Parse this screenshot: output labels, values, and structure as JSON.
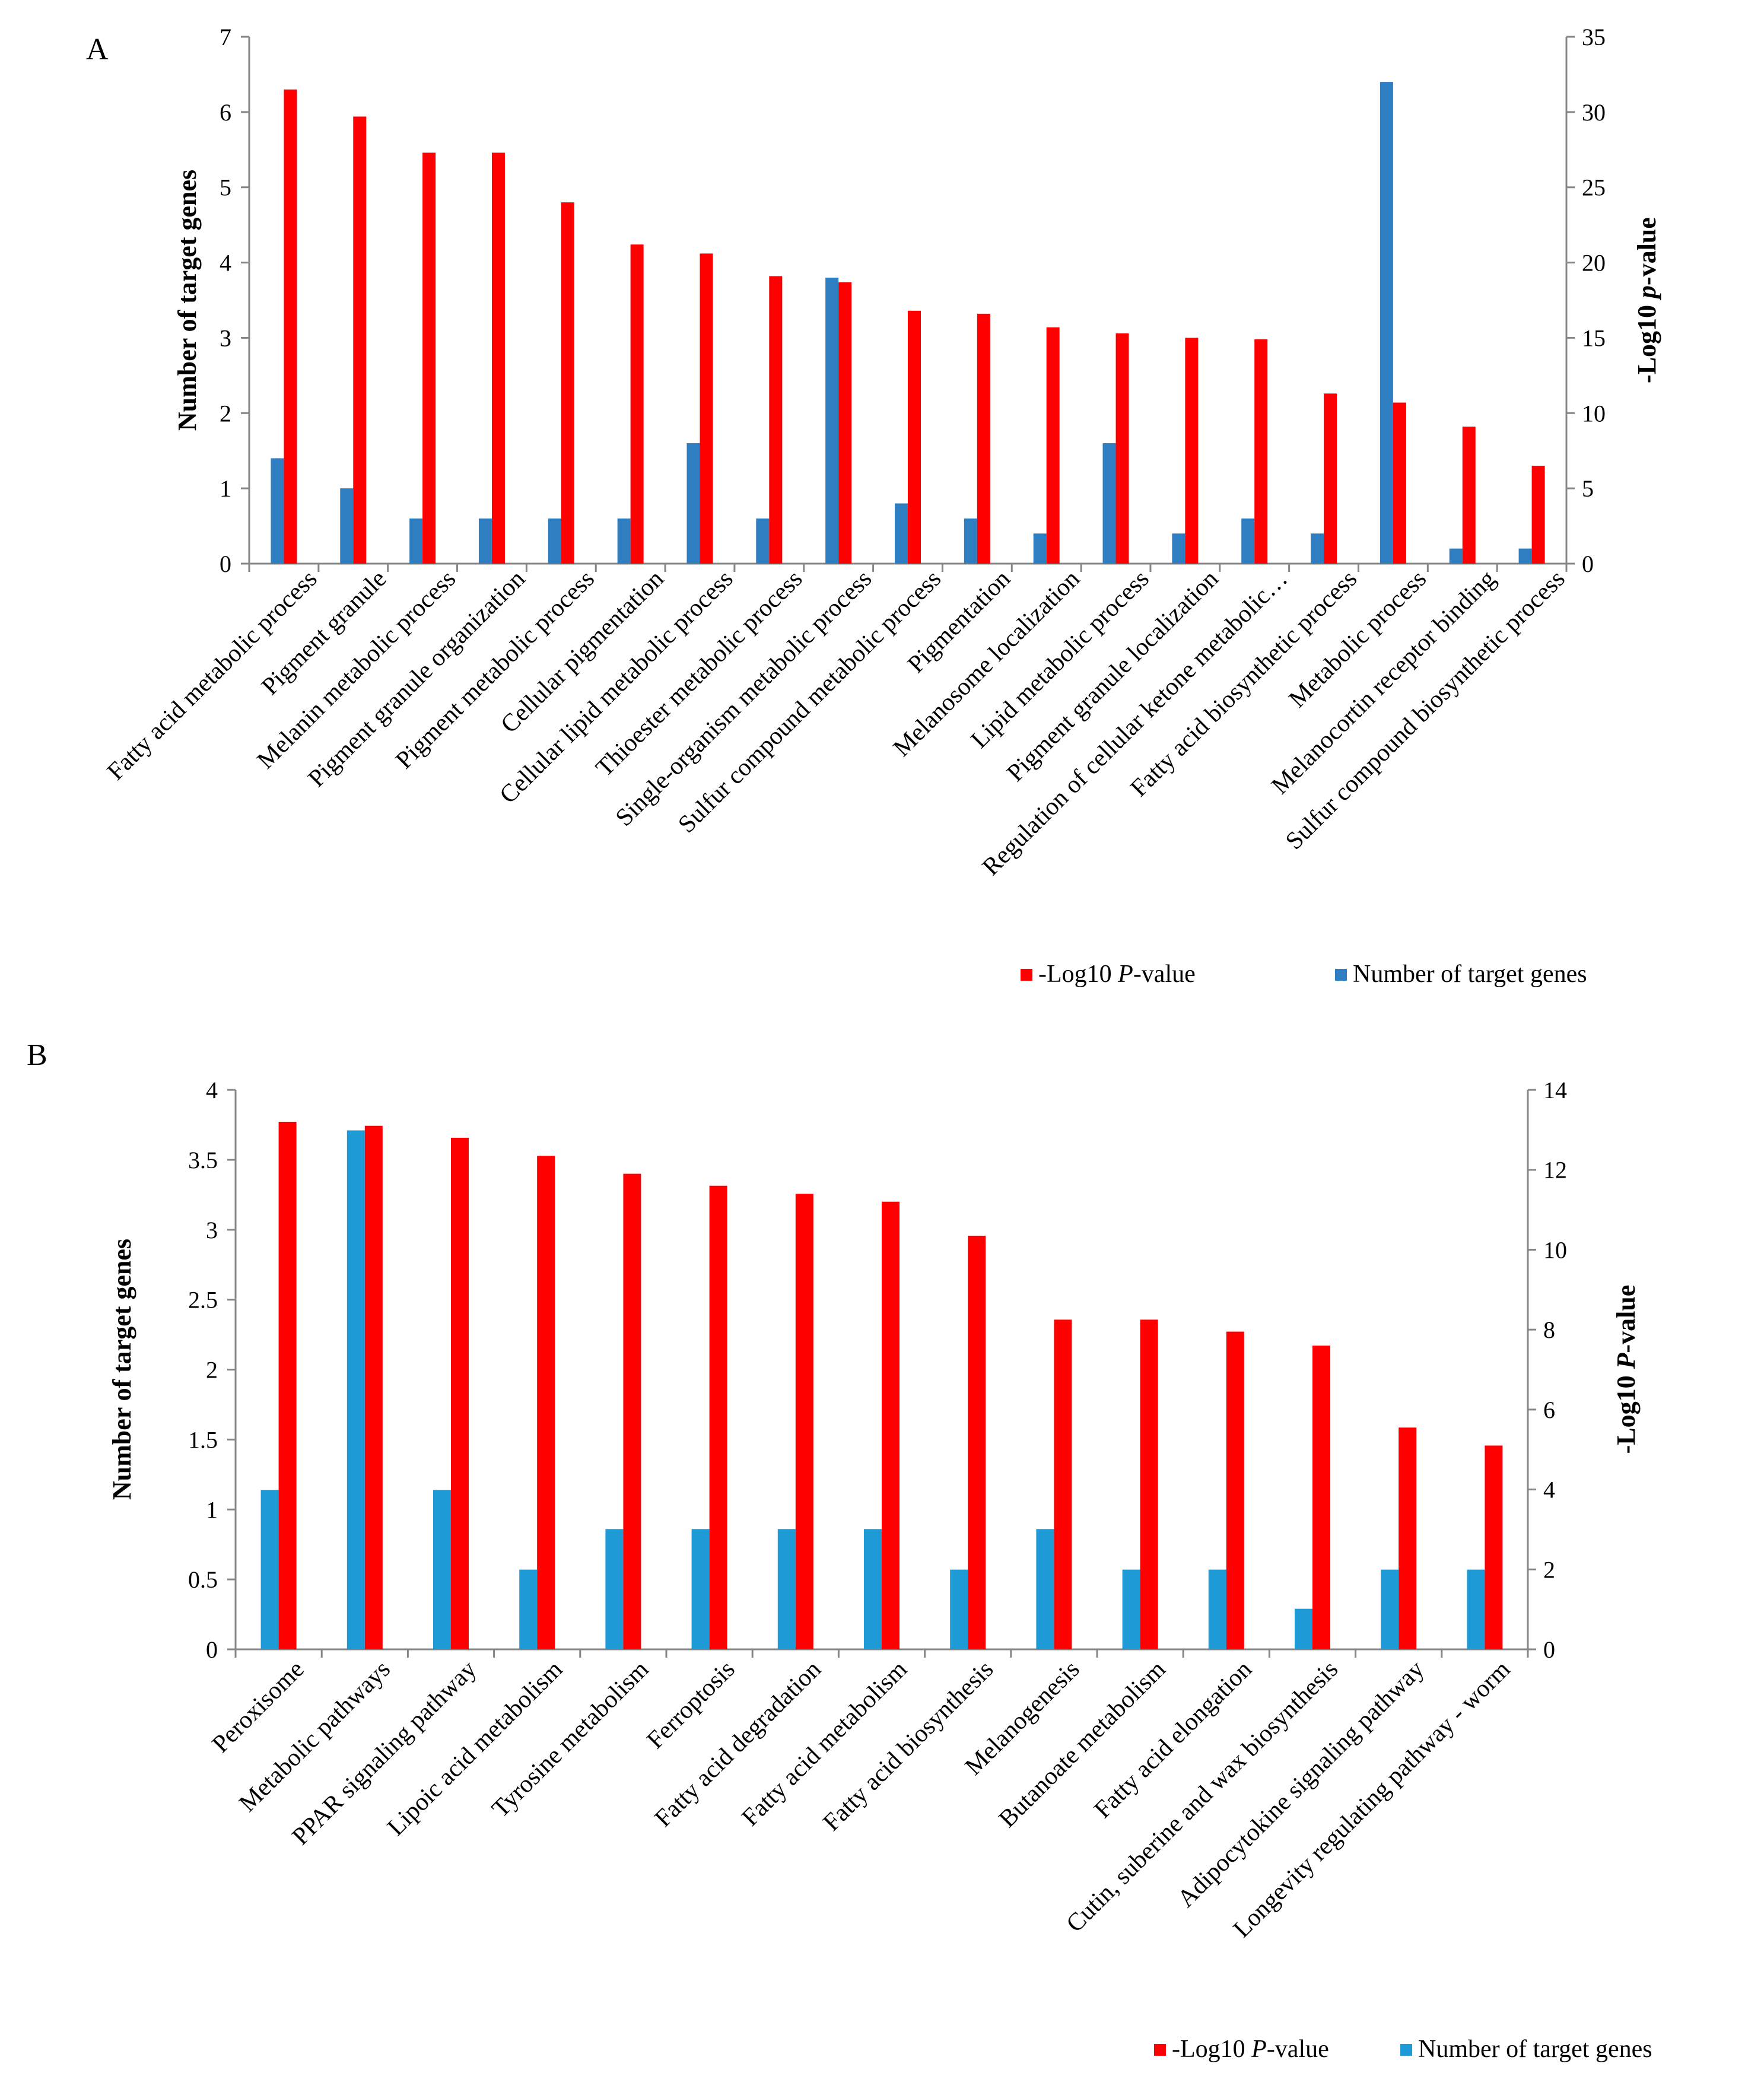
{
  "chart_data": [
    {
      "type": "bar",
      "panel": "A",
      "categories": [
        "Fatty acid metabolic process",
        "Pigment granule",
        "Melanin metabolic process",
        "Pigment granule organization",
        "Pigment metabolic process",
        "Cellular pigmentation",
        "Cellular lipid metabolic process",
        "Thioester metabolic process",
        "Single-organism metabolic process",
        "Sulfur compound metabolic process",
        "Pigmentation",
        "Melanosome localization",
        "Lipid metabolic process",
        "Pigment granule localization",
        "Regulation of cellular ketone metabolic…",
        "Fatty acid biosynthetic process",
        "Metabolic process",
        "Melanocortin receptor binding",
        "Sulfur compound biosynthetic process"
      ],
      "series": [
        {
          "name": "Number of target genes",
          "axis": "left",
          "color": "#2E7EC1",
          "values": [
            1.4,
            1.0,
            0.6,
            0.6,
            0.6,
            0.6,
            1.6,
            0.6,
            3.8,
            0.8,
            0.6,
            0.4,
            1.6,
            0.4,
            0.6,
            0.4,
            6.4,
            0.2,
            0.2
          ]
        },
        {
          "name": "-Log10 P-value",
          "axis": "right",
          "color": "#FF0000",
          "values": [
            31.5,
            29.7,
            27.3,
            27.3,
            24.0,
            21.2,
            20.6,
            19.1,
            18.7,
            16.8,
            16.6,
            15.7,
            15.3,
            15.0,
            14.9,
            11.3,
            10.7,
            9.1,
            6.5
          ]
        }
      ],
      "ylabel_left": "Number of target genes",
      "ylabel_right_prefix": "-Log10 ",
      "ylabel_right_italic": "p",
      "ylabel_right_suffix": "-value",
      "ylim_left": [
        0,
        7
      ],
      "ylim_right": [
        0,
        35
      ],
      "yticks_left": [
        "0",
        "1",
        "2",
        "3",
        "4",
        "5",
        "6",
        "7"
      ],
      "yticks_right": [
        "0",
        "5",
        "10",
        "15",
        "20",
        "25",
        "30",
        "35"
      ],
      "legend": [
        {
          "prefix": "-Log10 ",
          "italic": "P",
          "suffix": "-value",
          "color": "#FF0000"
        },
        {
          "prefix": "Number of target genes",
          "italic": "",
          "suffix": "",
          "color": "#2E7EC1"
        }
      ],
      "legend_placement": "bottom-right"
    },
    {
      "type": "bar",
      "panel": "B",
      "categories": [
        "Peroxisome",
        "Metabolic pathways",
        "PPAR signaling pathway",
        "Lipoic acid metabolism",
        "Tyrosine metabolism",
        "Ferroptosis",
        "Fatty acid degradation",
        "Fatty acid metabolism",
        "Fatty acid biosynthesis",
        "Melanogenesis",
        "Butanoate metabolism",
        "Fatty acid elongation",
        "Cutin, suberine and wax biosynthesis",
        "Adipocytokine signaling pathway",
        "Longevity regulating pathway - worm"
      ],
      "series": [
        {
          "name": "Number of target genes",
          "axis": "left",
          "color": "#1E9BD7",
          "values": [
            1.14,
            3.71,
            1.14,
            0.57,
            0.86,
            0.86,
            0.86,
            0.86,
            0.57,
            0.86,
            0.57,
            0.57,
            0.29,
            0.57,
            0.57
          ]
        },
        {
          "name": "-Log10 P-value",
          "axis": "right",
          "color": "#FF0000",
          "values": [
            13.2,
            13.1,
            12.8,
            12.35,
            11.9,
            11.6,
            11.4,
            11.2,
            10.35,
            8.25,
            8.25,
            7.95,
            7.6,
            5.55,
            5.1
          ]
        }
      ],
      "ylabel_left": "Number of target genes",
      "ylabel_right_prefix": "-Log10 ",
      "ylabel_right_italic": "P",
      "ylabel_right_suffix": "-value",
      "ylim_left": [
        0,
        4
      ],
      "ylim_right": [
        0,
        14
      ],
      "yticks_left": [
        "0",
        "0.5",
        "1",
        "1.5",
        "2",
        "2.5",
        "3",
        "3.5",
        "4"
      ],
      "yticks_right": [
        "0",
        "2",
        "4",
        "6",
        "8",
        "10",
        "12",
        "14"
      ],
      "legend": [
        {
          "prefix": "-Log10 ",
          "italic": "P",
          "suffix": "-value",
          "color": "#FF0000"
        },
        {
          "prefix": "Number of target genes",
          "italic": "",
          "suffix": "",
          "color": "#1E9BD7"
        }
      ],
      "legend_placement": "bottom-right"
    }
  ]
}
